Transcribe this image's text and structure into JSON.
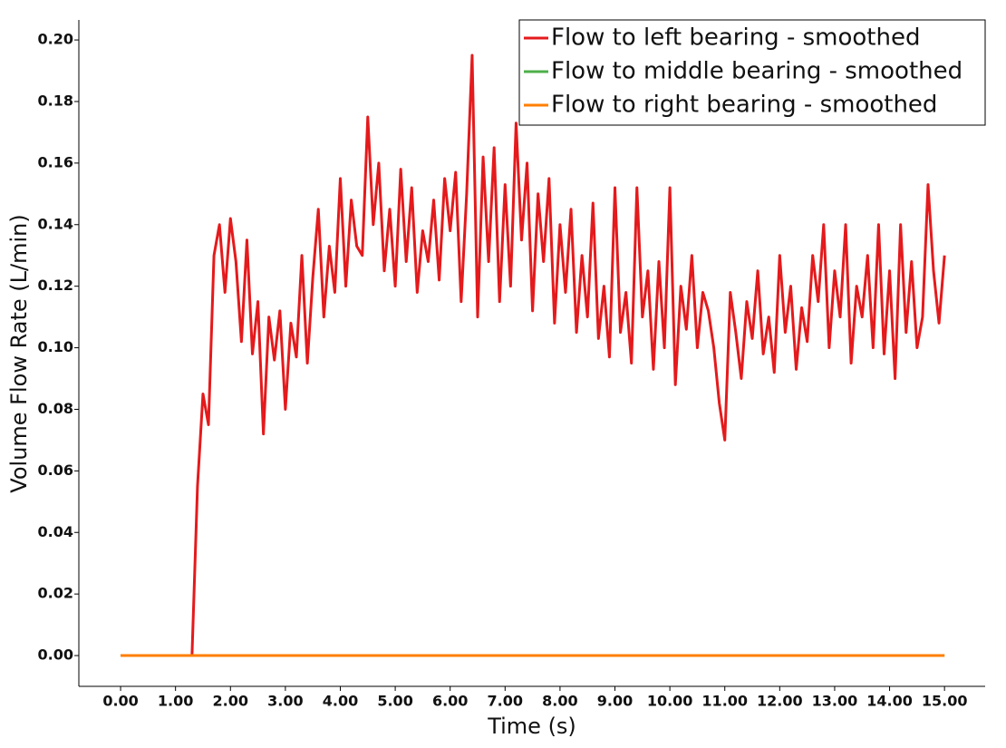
{
  "chart_data": {
    "type": "line",
    "xlabel": "Time (s)",
    "ylabel": "Volume Flow Rate (L/min)",
    "legend": "upper right",
    "xlim": [
      -0.76,
      15.74
    ],
    "ylim": [
      -0.01,
      0.2065
    ],
    "xticks": [
      {
        "value": 0,
        "label": "0.00"
      },
      {
        "value": 1,
        "label": "1.00"
      },
      {
        "value": 2,
        "label": "2.00"
      },
      {
        "value": 3,
        "label": "3.00"
      },
      {
        "value": 4,
        "label": "4.00"
      },
      {
        "value": 5,
        "label": "5.00"
      },
      {
        "value": 6,
        "label": "6.00"
      },
      {
        "value": 7,
        "label": "7.00"
      },
      {
        "value": 8,
        "label": "8.00"
      },
      {
        "value": 9,
        "label": "9.00"
      },
      {
        "value": 10,
        "label": "10.00"
      },
      {
        "value": 11,
        "label": "11.00"
      },
      {
        "value": 12,
        "label": "12.00"
      },
      {
        "value": 13,
        "label": "13.00"
      },
      {
        "value": 14,
        "label": "14.00"
      },
      {
        "value": 15,
        "label": "15.00"
      }
    ],
    "yticks": [
      {
        "value": 0,
        "label": "0.00"
      },
      {
        "value": 0.02,
        "label": "0.02"
      },
      {
        "value": 0.04,
        "label": "0.04"
      },
      {
        "value": 0.06,
        "label": "0.06"
      },
      {
        "value": 0.08,
        "label": "0.08"
      },
      {
        "value": 0.1,
        "label": "0.10"
      },
      {
        "value": 0.12,
        "label": "0.12"
      },
      {
        "value": 0.14,
        "label": "0.14"
      },
      {
        "value": 0.16,
        "label": "0.16"
      },
      {
        "value": 0.18,
        "label": "0.18"
      },
      {
        "value": 0.2,
        "label": "0.20"
      }
    ],
    "x": [
      0,
      0.1,
      0.2,
      0.3,
      0.4,
      0.5,
      0.6,
      0.7,
      0.8,
      0.9,
      1,
      1.1,
      1.2,
      1.3,
      1.4,
      1.5,
      1.6,
      1.7,
      1.8,
      1.9,
      2,
      2.1,
      2.2,
      2.3,
      2.4,
      2.5,
      2.6,
      2.7,
      2.8,
      2.9,
      3,
      3.1,
      3.2,
      3.3,
      3.4,
      3.5,
      3.6,
      3.7,
      3.8,
      3.9,
      4,
      4.1,
      4.2,
      4.3,
      4.4,
      4.5,
      4.6,
      4.7,
      4.8,
      4.9,
      5,
      5.1,
      5.2,
      5.3,
      5.4,
      5.5,
      5.6,
      5.7,
      5.8,
      5.9,
      6,
      6.1,
      6.2,
      6.3,
      6.4,
      6.5,
      6.6,
      6.7,
      6.8,
      6.9,
      7,
      7.1,
      7.2,
      7.3,
      7.4,
      7.5,
      7.6,
      7.7,
      7.8,
      7.9,
      8,
      8.1,
      8.2,
      8.3,
      8.4,
      8.5,
      8.6,
      8.7,
      8.8,
      8.9,
      9,
      9.1,
      9.2,
      9.3,
      9.4,
      9.5,
      9.6,
      9.7,
      9.8,
      9.9,
      10,
      10.1,
      10.2,
      10.3,
      10.4,
      10.5,
      10.6,
      10.7,
      10.8,
      10.9,
      11,
      11.1,
      11.2,
      11.3,
      11.4,
      11.5,
      11.6,
      11.7,
      11.8,
      11.9,
      12,
      12.1,
      12.2,
      12.3,
      12.4,
      12.5,
      12.6,
      12.7,
      12.8,
      12.9,
      13,
      13.1,
      13.2,
      13.3,
      13.4,
      13.5,
      13.6,
      13.7,
      13.8,
      13.9,
      14,
      14.1,
      14.2,
      14.3,
      14.4,
      14.5,
      14.6,
      14.7,
      14.8,
      14.9,
      15
    ],
    "series": [
      {
        "name": "Flow to left bearing - smoothed",
        "color": "#e41a1c",
        "values": [
          0,
          0,
          0,
          0,
          0,
          0,
          0,
          0,
          0,
          0,
          0,
          0,
          0,
          0,
          0.055,
          0.085,
          0.075,
          0.13,
          0.14,
          0.118,
          0.142,
          0.128,
          0.102,
          0.135,
          0.098,
          0.115,
          0.072,
          0.11,
          0.096,
          0.112,
          0.08,
          0.108,
          0.097,
          0.13,
          0.095,
          0.123,
          0.145,
          0.11,
          0.133,
          0.118,
          0.155,
          0.12,
          0.148,
          0.133,
          0.13,
          0.175,
          0.14,
          0.16,
          0.125,
          0.145,
          0.12,
          0.158,
          0.128,
          0.152,
          0.118,
          0.138,
          0.128,
          0.148,
          0.122,
          0.155,
          0.138,
          0.157,
          0.115,
          0.15,
          0.195,
          0.11,
          0.162,
          0.128,
          0.165,
          0.115,
          0.153,
          0.12,
          0.173,
          0.135,
          0.16,
          0.112,
          0.15,
          0.128,
          0.155,
          0.108,
          0.14,
          0.118,
          0.145,
          0.105,
          0.13,
          0.11,
          0.147,
          0.103,
          0.12,
          0.097,
          0.152,
          0.105,
          0.118,
          0.095,
          0.152,
          0.11,
          0.125,
          0.093,
          0.128,
          0.1,
          0.152,
          0.088,
          0.12,
          0.106,
          0.13,
          0.1,
          0.118,
          0.112,
          0.1,
          0.082,
          0.07,
          0.118,
          0.105,
          0.09,
          0.115,
          0.103,
          0.125,
          0.098,
          0.11,
          0.092,
          0.13,
          0.105,
          0.12,
          0.093,
          0.113,
          0.102,
          0.13,
          0.115,
          0.14,
          0.1,
          0.125,
          0.11,
          0.14,
          0.095,
          0.12,
          0.11,
          0.13,
          0.1,
          0.14,
          0.098,
          0.125,
          0.09,
          0.14,
          0.105,
          0.128,
          0.1,
          0.11,
          0.153,
          0.125,
          0.108,
          0.13
        ]
      },
      {
        "name": "Flow to middle bearing - smoothed",
        "color": "#4daf4a",
        "x": [
          0,
          15
        ],
        "values": [
          0,
          0
        ]
      },
      {
        "name": "Flow to right bearing - smoothed",
        "color": "#ff7f00",
        "x": [
          0,
          15
        ],
        "values": [
          0,
          0
        ]
      }
    ]
  }
}
